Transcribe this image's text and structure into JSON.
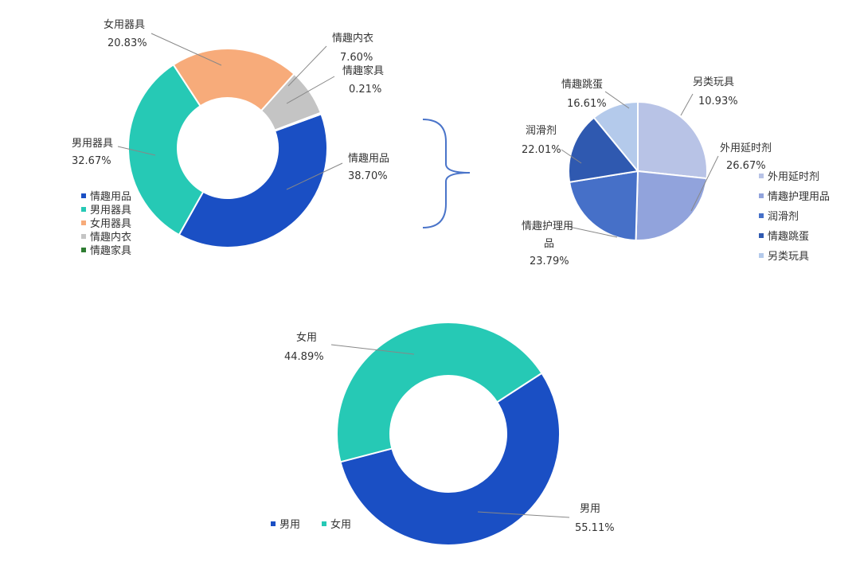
{
  "chart_data": [
    {
      "type": "donut",
      "title": "",
      "legend_position": "bottom-left",
      "series": [
        {
          "name": "情趣用品",
          "value": 38.7,
          "label": "38.70%",
          "color": "#1a4fc4"
        },
        {
          "name": "男用器具",
          "value": 32.67,
          "label": "32.67%",
          "color": "#26c9b5"
        },
        {
          "name": "女用器具",
          "value": 20.83,
          "label": "20.83%",
          "color": "#f7ab7a"
        },
        {
          "name": "情趣内衣",
          "value": 7.6,
          "label": "7.60%",
          "color": "#c4c4c4"
        },
        {
          "name": "情趣家具",
          "value": 0.21,
          "label": "0.21%",
          "color": "#2e7d32"
        }
      ]
    },
    {
      "type": "pie",
      "title": "",
      "legend_position": "right",
      "series": [
        {
          "name": "外用延时剂",
          "value": 26.67,
          "label": "26.67%",
          "color": "#b8c3e6"
        },
        {
          "name": "情趣护理用品",
          "value": 23.79,
          "label": "23.79%",
          "color": "#91a3dc"
        },
        {
          "name": "润滑剂",
          "value": 22.01,
          "label": "22.01%",
          "color": "#4670c8"
        },
        {
          "name": "情趣跳蛋",
          "value": 16.61,
          "label": "16.61%",
          "color": "#2f59b0"
        },
        {
          "name": "另类玩具",
          "value": 10.93,
          "label": "10.93%",
          "color": "#b4caeb"
        }
      ]
    },
    {
      "type": "donut",
      "title": "",
      "legend_position": "bottom-left",
      "series": [
        {
          "name": "男用",
          "value": 55.11,
          "label": "55.11%",
          "color": "#1a4fc4"
        },
        {
          "name": "女用",
          "value": 44.89,
          "label": "44.89%",
          "color": "#26c9b5"
        }
      ]
    }
  ]
}
